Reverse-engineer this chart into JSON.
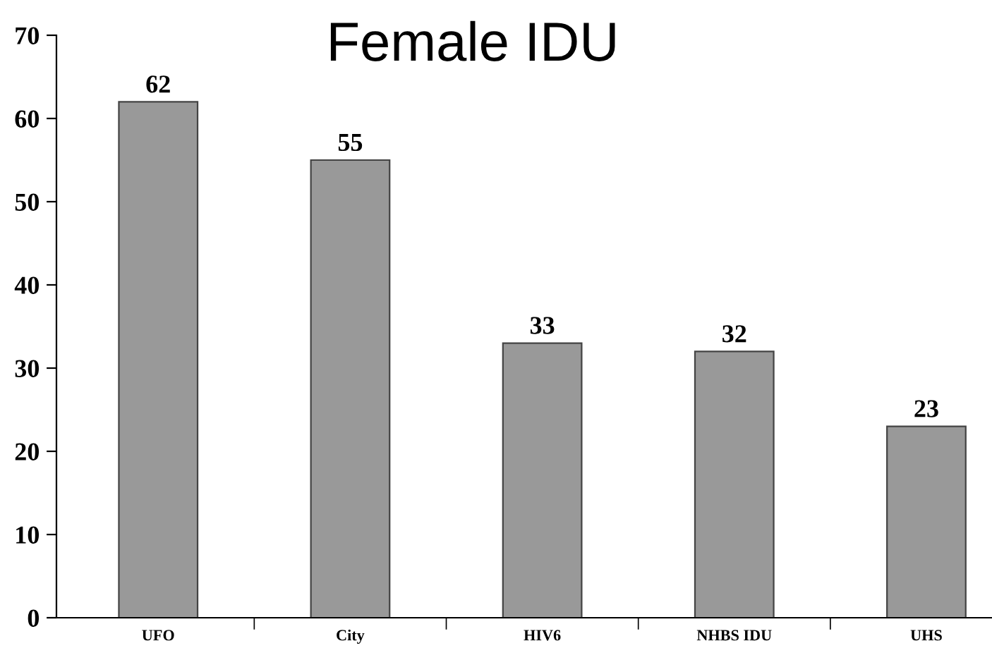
{
  "chart_data": {
    "type": "bar",
    "title": "Female IDU",
    "categories": [
      "UFO",
      "City",
      "HIV6",
      "NHBS IDU",
      "UHS"
    ],
    "values": [
      62,
      55,
      33,
      32,
      23
    ],
    "color": "#999999",
    "ylim": [
      0,
      70
    ],
    "yticks": [
      0,
      10,
      20,
      30,
      40,
      50,
      60,
      70
    ],
    "data_labels": true,
    "grid": false,
    "legend": false
  }
}
